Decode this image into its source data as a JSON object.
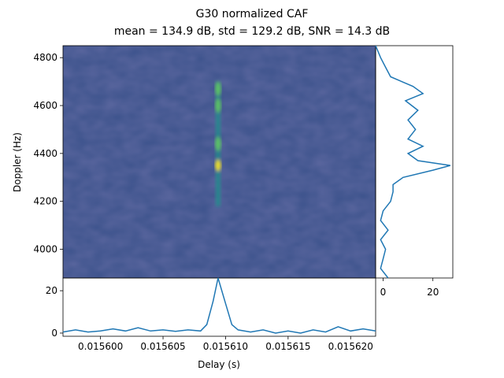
{
  "figure": {
    "title_line1": "G30 normalized CAF",
    "title_line2": "mean = 134.9 dB, std = 129.2 dB, SNR = 14.3 dB"
  },
  "colors": {
    "line": "#1f77b4",
    "viridis_low": "#440154",
    "viridis_mid": "#21918c",
    "viridis_high": "#fde725"
  },
  "chart_data": [
    {
      "id": "caf-heatmap",
      "type": "heatmap",
      "colormap": "viridis",
      "xlabel": "Delay (s)",
      "ylabel": "Doppler (Hz)",
      "xlim": [
        0.015597,
        0.015622
      ],
      "ylim": [
        3880,
        4850
      ],
      "y_ticks": [
        4000,
        4200,
        4400,
        4600,
        4800
      ],
      "ridge_delay": 0.0156094,
      "hotspots": [
        {
          "doppler": 4350,
          "level": 1.0
        },
        {
          "doppler": 4440,
          "level": 0.55
        },
        {
          "doppler": 4600,
          "level": 0.55
        },
        {
          "doppler": 4670,
          "level": 0.5
        }
      ],
      "ridge_range": [
        4180,
        4700
      ]
    },
    {
      "id": "delay-profile",
      "type": "line",
      "xlim": [
        0.015597,
        0.015622
      ],
      "ylim": [
        -1.5,
        26
      ],
      "x_ticks": [
        0.0156,
        0.015605,
        0.01561,
        0.015615,
        0.01562
      ],
      "x_tick_labels": [
        "0.015600",
        "0.015605",
        "0.015610",
        "0.015615",
        "0.015620"
      ],
      "y_ticks": [
        0,
        20
      ],
      "x": [
        0.015597,
        0.015598,
        0.015599,
        0.0156,
        0.015601,
        0.015602,
        0.015603,
        0.015604,
        0.015605,
        0.015606,
        0.015607,
        0.015608,
        0.0156085,
        0.015609,
        0.0156094,
        0.01561,
        0.0156105,
        0.015611,
        0.015612,
        0.015613,
        0.015614,
        0.015615,
        0.015616,
        0.015617,
        0.015618,
        0.015619,
        0.01562,
        0.015621,
        0.015622
      ],
      "y": [
        0.5,
        1.5,
        0.5,
        1.0,
        2.0,
        1.0,
        2.5,
        1.0,
        1.5,
        0.8,
        1.5,
        1.0,
        4.0,
        15.0,
        26.0,
        14.0,
        4.0,
        1.5,
        0.5,
        1.5,
        0.0,
        1.0,
        0.0,
        1.5,
        0.5,
        3.0,
        1.0,
        2.0,
        1.0
      ]
    },
    {
      "id": "doppler-profile",
      "type": "line",
      "orientation": "horizontal",
      "xlim": [
        -3,
        28
      ],
      "ylim": [
        3880,
        4850
      ],
      "x_ticks": [
        0,
        20
      ],
      "doppler": [
        3880,
        3920,
        3960,
        4000,
        4040,
        4080,
        4120,
        4160,
        4200,
        4240,
        4270,
        4300,
        4330,
        4350,
        4370,
        4400,
        4430,
        4460,
        4500,
        4540,
        4580,
        4620,
        4650,
        4680,
        4720,
        4760,
        4800,
        4850
      ],
      "value": [
        2,
        -1,
        0,
        1,
        -1,
        2,
        -1,
        0,
        3,
        4,
        4,
        8,
        20,
        27,
        14,
        10,
        16,
        10,
        13,
        10,
        14,
        9,
        16,
        12,
        3,
        1,
        -1,
        -3
      ]
    }
  ]
}
